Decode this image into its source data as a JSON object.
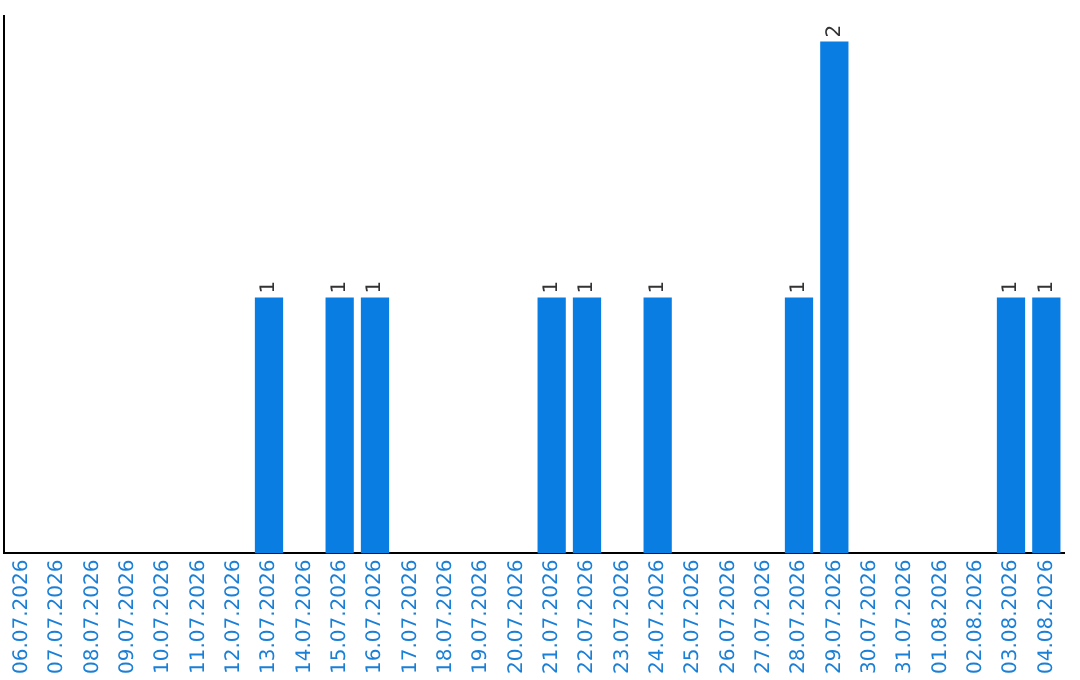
{
  "chart_data": {
    "type": "bar",
    "categories": [
      "06.07.2026",
      "07.07.2026",
      "08.07.2026",
      "09.07.2026",
      "10.07.2026",
      "11.07.2026",
      "12.07.2026",
      "13.07.2026",
      "14.07.2026",
      "15.07.2026",
      "16.07.2026",
      "17.07.2026",
      "18.07.2026",
      "19.07.2026",
      "20.07.2026",
      "21.07.2026",
      "22.07.2026",
      "23.07.2026",
      "24.07.2026",
      "25.07.2026",
      "26.07.2026",
      "27.07.2026",
      "28.07.2026",
      "29.07.2026",
      "30.07.2026",
      "31.07.2026",
      "01.08.2026",
      "02.08.2026",
      "03.08.2026",
      "04.08.2026"
    ],
    "values": [
      0,
      0,
      0,
      0,
      0,
      0,
      0,
      1,
      0,
      1,
      1,
      0,
      0,
      0,
      0,
      1,
      1,
      0,
      1,
      0,
      0,
      0,
      1,
      2,
      0,
      0,
      0,
      0,
      1,
      1
    ],
    "value_labels": [
      null,
      null,
      null,
      null,
      null,
      null,
      null,
      "1",
      null,
      "1",
      "1",
      null,
      null,
      null,
      null,
      "1",
      "1",
      null,
      "1",
      null,
      null,
      null,
      "1",
      "2",
      null,
      null,
      null,
      null,
      "1",
      "1"
    ],
    "color": "#0a7de3",
    "ylim": [
      0,
      2.1
    ],
    "tick_labels": "x"
  }
}
